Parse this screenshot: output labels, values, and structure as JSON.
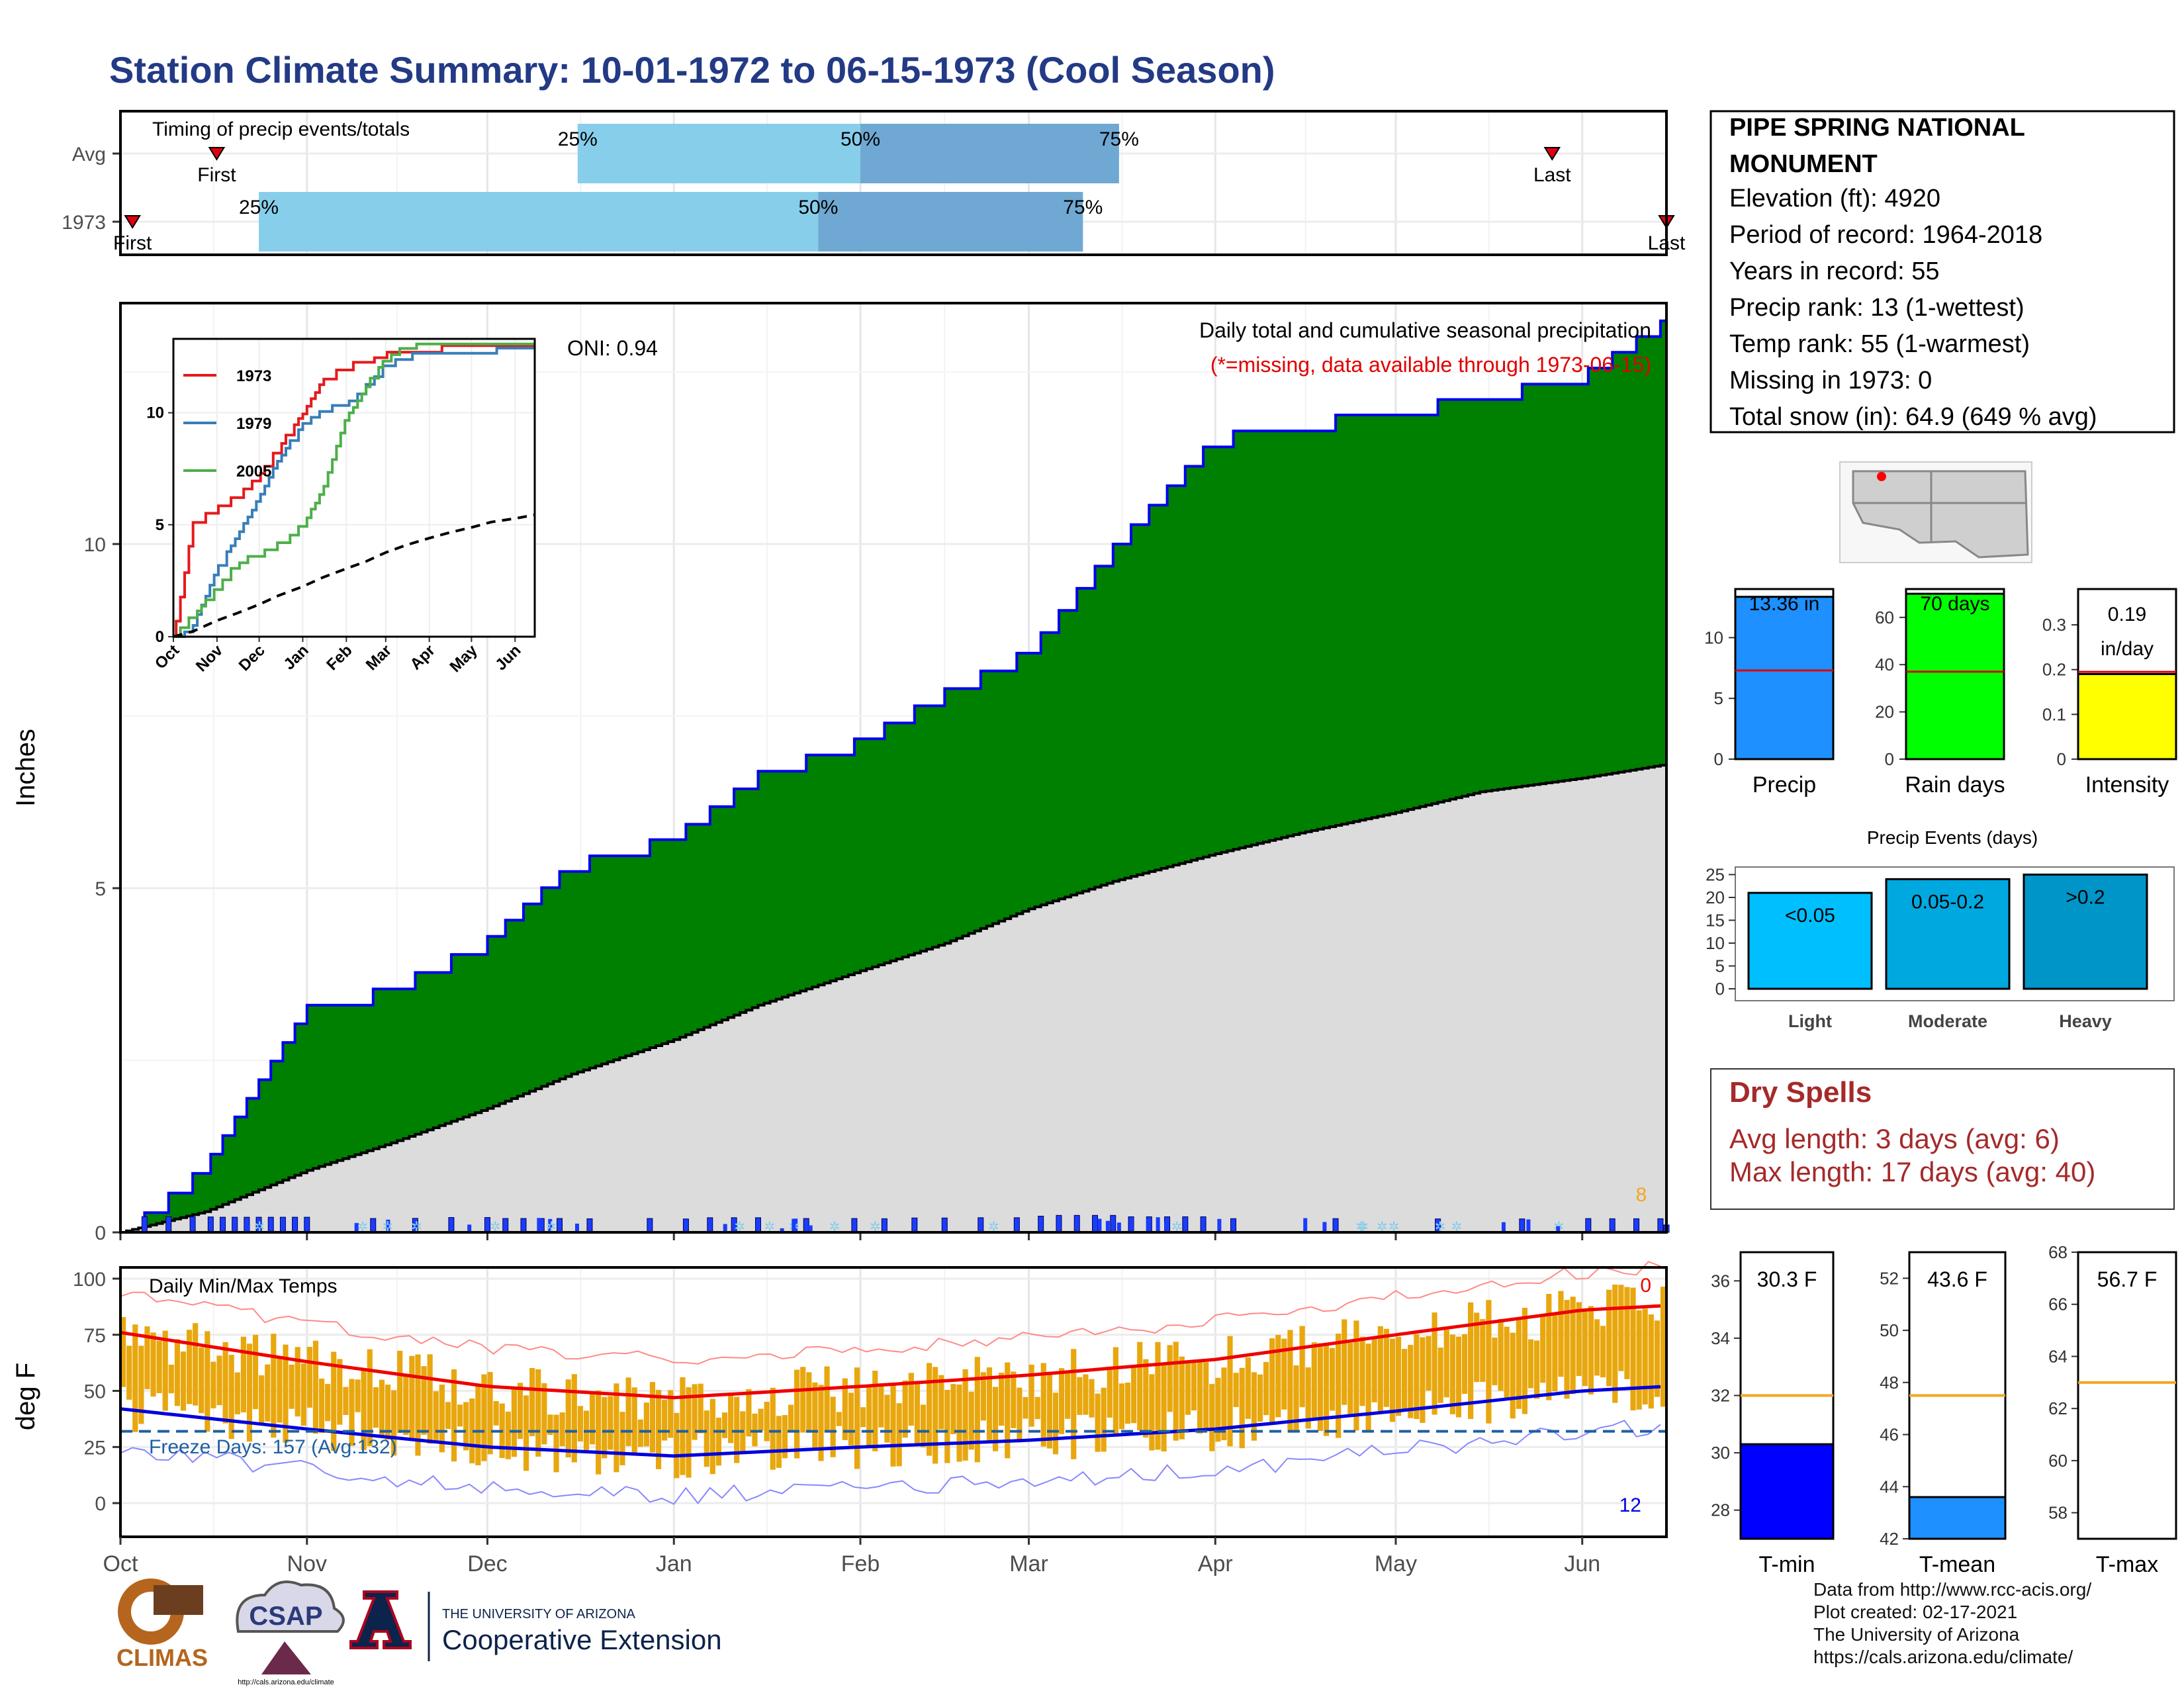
{
  "title": "Station Climate Summary: 10-01-1972 to 06-15-1973 (Cool Season)",
  "month_labels": [
    "Oct",
    "Nov",
    "Dec",
    "Jan",
    "Feb",
    "Mar",
    "Apr",
    "May",
    "Jun"
  ],
  "timing": {
    "panel_label": "Timing of precip events/totals",
    "rows": [
      {
        "label": "Avg",
        "first_label": "First",
        "last_label": "Last",
        "first": "1972-10-17",
        "last": "1973-05-27",
        "p25": "1972-12-16",
        "p50": "1973-02-01",
        "p75": "1973-03-16",
        "q25_label": "25%",
        "q50_label": "50%",
        "q75_label": "75%"
      },
      {
        "label": "1973",
        "first_label": "First",
        "last_label": "Last",
        "first": "1972-10-03",
        "last": "1973-06-15",
        "p25": "1972-10-24",
        "p50": "1973-01-25",
        "p75": "1973-03-10",
        "q25_label": "25%",
        "q50_label": "50%",
        "q75_label": "75%"
      }
    ],
    "colors": {
      "light": "#87ceeb",
      "dark": "#6fa8d2",
      "marker": "#e0000f"
    }
  },
  "precip": {
    "ylabel": "Inches",
    "yticks": [
      0,
      5,
      10
    ],
    "ymax": 13.5,
    "title": "Daily total and cumulative seasonal precipitation",
    "note": "(*=missing, data available through 1973-06-15)",
    "oni": "ONI: 0.94",
    "count_label": "8",
    "colors": {
      "fill": "#008000",
      "line": "#0000ee",
      "avg_fill": "#dcdcdc",
      "daily": "#1a3cff",
      "snow": "#87ceeb",
      "big": "#f5a623"
    }
  },
  "inset": {
    "legend": [
      "1973",
      "1979",
      "2005"
    ],
    "colors": [
      "#e41a1c",
      "#377eb8",
      "#4daf4a"
    ],
    "yticks": [
      0,
      5,
      10
    ],
    "months": [
      "Oct",
      "Nov",
      "Dec",
      "Jan",
      "Feb",
      "Mar",
      "Apr",
      "May",
      "Jun"
    ]
  },
  "temps": {
    "ylabel": "deg F",
    "panel_label": "Daily Min/Max Temps",
    "freeze_label": "Freeze Days: 157 (Avg:132)",
    "hot_count": "0",
    "cold_count": "12",
    "yticks": [
      0,
      25,
      50,
      75,
      100
    ]
  },
  "station": {
    "name_line1": "PIPE SPRING NATIONAL",
    "name_line2": "MONUMENT",
    "lines": [
      "Elevation (ft): 4920",
      "Period of record: 1964-2018",
      "Years in record: 55",
      "Precip rank: 13 (1-wettest)",
      "Temp rank: 55 (1-warmest)",
      "Missing in 1973: 0",
      "Total snow (in): 64.9 (649 % avg)"
    ]
  },
  "mini_bars": [
    {
      "name": "Precip",
      "label": "13.36 in",
      "value": 13.36,
      "avg": 7.3,
      "max": 14,
      "ticks": [
        0,
        5,
        10
      ],
      "color": "#1e90ff"
    },
    {
      "name": "Rain days",
      "label": "70 days",
      "value": 70,
      "avg": 37,
      "max": 72,
      "ticks": [
        0,
        20,
        40,
        60
      ],
      "color": "#00ff00"
    },
    {
      "name": "Intensity",
      "label_top": "0.19",
      "label_bottom": "in/day",
      "value": 0.19,
      "avg": 0.195,
      "max": 0.38,
      "ticks": [
        0.0,
        0.1,
        0.2,
        0.3
      ],
      "color": "#ffff00"
    }
  ],
  "events": {
    "title": "Precip Events (days)",
    "categories": [
      "Light",
      "Moderate",
      "Heavy"
    ],
    "labels": [
      "<0.05",
      "0.05-0.2",
      ">0.2"
    ],
    "values": [
      21,
      24,
      25
    ],
    "ticks": [
      0,
      5,
      10,
      15,
      20,
      25
    ],
    "colors": [
      "#00bfff",
      "#00a8e0",
      "#0095c8"
    ]
  },
  "dry_spells": {
    "title": "Dry Spells",
    "avg_line": "Avg length: 3 days (avg: 6)",
    "max_line": "Max length: 17 days (avg: 40)"
  },
  "temp_bars": [
    {
      "name": "T-min",
      "label": "30.3 F",
      "value": 30.3,
      "ref": 32,
      "min": 27,
      "max": 37,
      "ticks": [
        28,
        30,
        32,
        34,
        36
      ],
      "color": "#0000ff"
    },
    {
      "name": "T-mean",
      "label": "43.6 F",
      "value": 43.6,
      "ref": 47.5,
      "min": 42,
      "max": 53,
      "ticks": [
        42,
        44,
        46,
        48,
        50,
        52
      ],
      "color": "#1e90ff"
    },
    {
      "name": "T-max",
      "label": "56.7 F",
      "value": 56.7,
      "ref": 63,
      "min": 57,
      "max": 68,
      "ticks": [
        58,
        60,
        62,
        64,
        66,
        68
      ],
      "color": "#1e90ff"
    }
  ],
  "logos": {
    "climas": "CLIMAS",
    "csap": "CSAP",
    "csap_url": "http://cals.arizona.edu/climate",
    "ua_top": "THE UNIVERSITY OF ARIZONA",
    "ua_bottom": "Cooperative Extension"
  },
  "footer": [
    "Data from http://www.rcc-acis.org/",
    "Plot created: 02-17-2021",
    "The University of Arizona",
    "https://cals.arizona.edu/climate/"
  ],
  "chart_data": [
    {
      "type": "area",
      "title": "Daily total and cumulative seasonal precipitation",
      "ylabel": "Inches",
      "x": [
        "1972-10-01",
        "1972-10-15",
        "1972-11-01",
        "1972-11-15",
        "1972-12-01",
        "1972-12-15",
        "1973-01-01",
        "1973-01-15",
        "1973-02-01",
        "1973-02-15",
        "1973-03-01",
        "1973-03-15",
        "1973-04-01",
        "1973-04-15",
        "1973-05-01",
        "1973-05-15",
        "1973-06-01",
        "1973-06-15"
      ],
      "series": [
        {
          "name": "cumulative",
          "values": [
            0.0,
            1.0,
            3.3,
            3.6,
            4.3,
            5.4,
            5.8,
            6.7,
            7.2,
            7.9,
            8.5,
            10.0,
            11.6,
            11.8,
            12.0,
            12.2,
            12.5,
            13.3
          ]
        },
        {
          "name": "average cumulative",
          "values": [
            0.0,
            0.3,
            0.9,
            1.3,
            1.8,
            2.3,
            2.8,
            3.3,
            3.8,
            4.2,
            4.7,
            5.1,
            5.5,
            5.8,
            6.1,
            6.4,
            6.6,
            6.8
          ]
        }
      ],
      "ylim": [
        0,
        13.5
      ]
    },
    {
      "type": "line",
      "title": "Daily Min/Max Temps",
      "ylabel": "deg F",
      "x": [
        "Oct",
        "Nov",
        "Dec",
        "Jan",
        "Feb",
        "Mar",
        "Apr",
        "May",
        "Jun"
      ],
      "series": [
        {
          "name": "avg max",
          "values": [
            76,
            63,
            52,
            47,
            52,
            57,
            64,
            75,
            86
          ]
        },
        {
          "name": "avg min",
          "values": [
            42,
            33,
            25,
            21,
            25,
            28,
            33,
            41,
            50
          ]
        }
      ],
      "ylim": [
        -15,
        105
      ]
    }
  ]
}
